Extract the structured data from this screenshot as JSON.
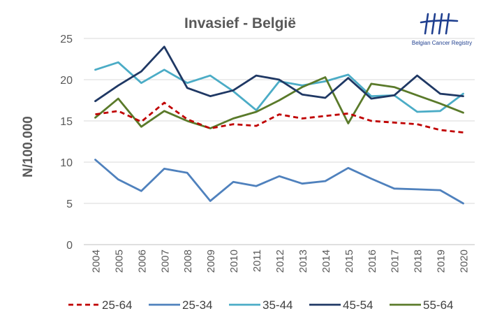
{
  "logo": {
    "text": "Belgian Cancer Registry",
    "color": "#1f3f8f"
  },
  "chart_data": {
    "type": "line",
    "title": "Invasief - België",
    "xlabel": "",
    "ylabel": "N/100.000",
    "ylim": [
      0,
      25
    ],
    "yticks": [
      0,
      5,
      10,
      15,
      20,
      25
    ],
    "grid": true,
    "legend_position": "bottom",
    "categories": [
      "2004",
      "2005",
      "2006",
      "2007",
      "2008",
      "2009",
      "2010",
      "2011",
      "2012",
      "2013",
      "2014",
      "2015",
      "2016",
      "2017",
      "2018",
      "2019",
      "2020"
    ],
    "series": [
      {
        "name": "25-64",
        "color": "#c00000",
        "dashed": true,
        "values": [
          15.8,
          16.2,
          14.9,
          17.2,
          15.2,
          14.1,
          14.6,
          14.4,
          15.8,
          15.3,
          15.6,
          15.9,
          15.0,
          14.8,
          14.6,
          13.9,
          13.6
        ]
      },
      {
        "name": "25-34",
        "color": "#4f81bd",
        "dashed": false,
        "values": [
          10.3,
          7.9,
          6.5,
          9.2,
          8.7,
          5.3,
          7.6,
          7.1,
          8.3,
          7.4,
          7.7,
          9.3,
          8.0,
          6.8,
          6.7,
          6.6,
          5.0
        ]
      },
      {
        "name": "35-44",
        "color": "#4bacc6",
        "dashed": false,
        "values": [
          21.2,
          22.1,
          19.6,
          21.2,
          19.6,
          20.5,
          18.6,
          16.3,
          19.8,
          19.3,
          19.8,
          20.6,
          18.0,
          18.1,
          16.1,
          16.2,
          18.3
        ]
      },
      {
        "name": "45-54",
        "color": "#1f3864",
        "dashed": false,
        "values": [
          17.4,
          19.3,
          21.0,
          24.0,
          19.0,
          18.0,
          18.7,
          20.5,
          20.0,
          18.2,
          17.8,
          20.2,
          17.7,
          18.1,
          20.5,
          18.3,
          18.0
        ]
      },
      {
        "name": "55-64",
        "color": "#5a7a2a",
        "dashed": false,
        "values": [
          15.4,
          17.7,
          14.3,
          16.2,
          15.0,
          14.1,
          15.3,
          16.1,
          17.5,
          19.1,
          20.3,
          14.7,
          19.5,
          19.1,
          18.1,
          17.1,
          16.0
        ]
      }
    ]
  }
}
